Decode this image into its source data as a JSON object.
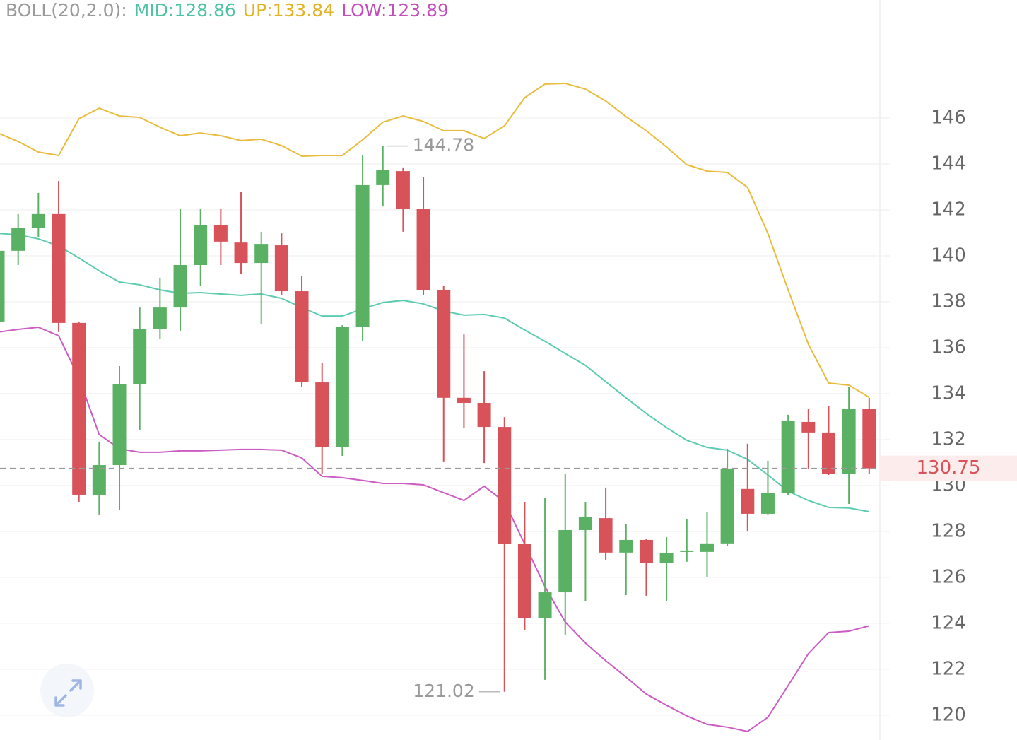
{
  "chart_data": {
    "type": "candlestick",
    "indicator": "BOLL(20,2.0):",
    "ylim": [
      118.92,
      151.14
    ],
    "yticks": [
      120,
      122,
      124,
      126,
      128,
      130,
      132,
      134,
      136,
      138,
      140,
      142,
      144,
      146
    ],
    "grid": true,
    "up_color": "#5bb163",
    "down_color": "#d8525a",
    "open": [
      137.14,
      140.22,
      141.23,
      141.82,
      137.08,
      129.6,
      130.89,
      134.43,
      136.83,
      137.75,
      139.6,
      141.35,
      140.58,
      139.69,
      140.46,
      138.46,
      134.49,
      131.66,
      136.92,
      143.08,
      143.69,
      142.06,
      138.52,
      133.82,
      133.6,
      132.55,
      127.45,
      124.22,
      125.35,
      128.06,
      128.58,
      127.08,
      127.63,
      126.62,
      127.11,
      127.11,
      127.48,
      129.85,
      128.77,
      129.66,
      132.77,
      132.31,
      130.52,
      133.35
    ],
    "high": [
      140.37,
      141.82,
      142.74,
      143.26,
      137.14,
      131.91,
      135.2,
      137.75,
      139.05,
      142.06,
      142.06,
      142.06,
      142.77,
      141.05,
      140.98,
      139.14,
      135.35,
      136.98,
      144.37,
      144.78,
      143.85,
      143.42,
      138.68,
      136.58,
      134.98,
      132.98,
      129.29,
      129.45,
      130.52,
      129.29,
      129.91,
      128.31,
      127.69,
      127.75,
      128.52,
      128.83,
      131.6,
      131.82,
      131.08,
      133.08,
      133.35,
      133.45,
      134.28,
      133.82
    ],
    "low": [
      136.98,
      139.6,
      140.83,
      136.68,
      129.29,
      128.74,
      128.92,
      132.43,
      136.37,
      136.74,
      138.68,
      139.6,
      139.2,
      137.05,
      138.31,
      134.28,
      130.52,
      131.29,
      136.28,
      142.15,
      141.05,
      138.28,
      131.05,
      132.52,
      130.98,
      121.02,
      123.69,
      121.54,
      123.51,
      124.98,
      126.74,
      125.23,
      125.2,
      124.98,
      126.68,
      126.0,
      127.38,
      128.0,
      128.74,
      129.6,
      130.74,
      130.46,
      129.2,
      130.52
    ],
    "close": [
      140.22,
      141.23,
      141.82,
      137.08,
      129.6,
      130.89,
      134.43,
      136.83,
      137.75,
      139.6,
      141.35,
      140.62,
      139.69,
      140.52,
      138.46,
      134.52,
      131.66,
      136.92,
      143.08,
      143.75,
      142.06,
      138.52,
      133.82,
      133.6,
      132.55,
      127.45,
      124.22,
      125.35,
      128.06,
      128.62,
      127.08,
      127.63,
      126.62,
      127.05,
      127.17,
      127.48,
      130.74,
      128.77,
      129.66,
      132.8,
      132.31,
      130.52,
      133.35,
      130.75
    ],
    "bands": [
      {
        "label": "MID:128.86",
        "color": "#5ccbb0",
        "text_color": "#4cc3a5",
        "values": [
          140.98,
          140.92,
          140.74,
          140.43,
          139.91,
          139.35,
          138.86,
          138.74,
          138.52,
          138.37,
          138.4,
          138.34,
          138.28,
          138.34,
          138.15,
          137.75,
          137.38,
          137.38,
          137.69,
          137.97,
          138.06,
          137.91,
          137.6,
          137.42,
          137.45,
          137.29,
          136.77,
          136.28,
          135.75,
          135.23,
          134.52,
          133.82,
          133.14,
          132.52,
          131.97,
          131.66,
          131.54,
          131.14,
          130.46,
          129.75,
          129.35,
          129.05,
          129.02,
          128.86
        ]
      },
      {
        "label": "UP:133.84",
        "color": "#e9bc3c",
        "text_color": "#e3b224",
        "values": [
          145.35,
          144.98,
          144.52,
          144.37,
          145.97,
          146.43,
          146.09,
          146.03,
          145.6,
          145.23,
          145.35,
          145.23,
          145.02,
          145.08,
          144.8,
          144.34,
          144.37,
          144.37,
          145.05,
          145.82,
          146.09,
          145.85,
          145.45,
          145.45,
          145.11,
          145.66,
          146.89,
          147.48,
          147.51,
          147.26,
          146.74,
          146.06,
          145.45,
          144.74,
          143.97,
          143.69,
          143.63,
          142.98,
          140.98,
          138.52,
          136.15,
          134.46,
          134.37,
          133.84
        ]
      },
      {
        "label": "LOW:123.89",
        "color": "#cc5cc4",
        "text_color": "#c34fbd",
        "values": [
          136.68,
          136.8,
          136.89,
          136.52,
          134.68,
          132.22,
          131.6,
          131.45,
          131.45,
          131.51,
          131.51,
          131.54,
          131.57,
          131.57,
          131.54,
          131.2,
          130.4,
          130.34,
          130.22,
          130.09,
          130.09,
          130.03,
          129.69,
          129.35,
          129.97,
          129.29,
          127.45,
          125.6,
          124.06,
          123.14,
          122.37,
          121.66,
          120.92,
          120.43,
          119.97,
          119.6,
          119.48,
          119.29,
          119.91,
          121.29,
          122.68,
          123.6,
          123.66,
          123.89
        ]
      }
    ],
    "high_marker": 144.78,
    "low_marker": 121.02,
    "last_price": 130.75
  }
}
